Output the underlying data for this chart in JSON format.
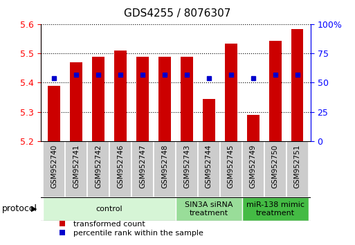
{
  "title": "GDS4255 / 8076307",
  "samples": [
    "GSM952740",
    "GSM952741",
    "GSM952742",
    "GSM952746",
    "GSM952747",
    "GSM952748",
    "GSM952743",
    "GSM952744",
    "GSM952745",
    "GSM952749",
    "GSM952750",
    "GSM952751"
  ],
  "red_values": [
    5.39,
    5.47,
    5.49,
    5.51,
    5.49,
    5.49,
    5.49,
    5.345,
    5.535,
    5.29,
    5.545,
    5.585
  ],
  "blue_values": [
    54,
    57,
    57,
    57,
    57,
    57,
    57,
    54,
    57,
    54,
    57,
    57
  ],
  "y_min": 5.2,
  "y_max": 5.6,
  "y_ticks_left": [
    5.2,
    5.3,
    5.4,
    5.5,
    5.6
  ],
  "y_ticks_right": [
    0,
    25,
    50,
    75,
    100
  ],
  "groups": [
    {
      "label": "control",
      "start": 0,
      "end": 6,
      "color": "#d6f5d6"
    },
    {
      "label": "SIN3A siRNA\ntreatment",
      "start": 6,
      "end": 9,
      "color": "#99dd99"
    },
    {
      "label": "miR-138 mimic\ntreatment",
      "start": 9,
      "end": 12,
      "color": "#44bb44"
    }
  ],
  "bar_color": "#cc0000",
  "dot_color": "#0000cc",
  "bar_width": 0.55,
  "protocol_label": "protocol",
  "legend_items": [
    "transformed count",
    "percentile rank within the sample"
  ],
  "title_fontsize": 11,
  "tick_fontsize": 9,
  "label_fontsize": 8
}
